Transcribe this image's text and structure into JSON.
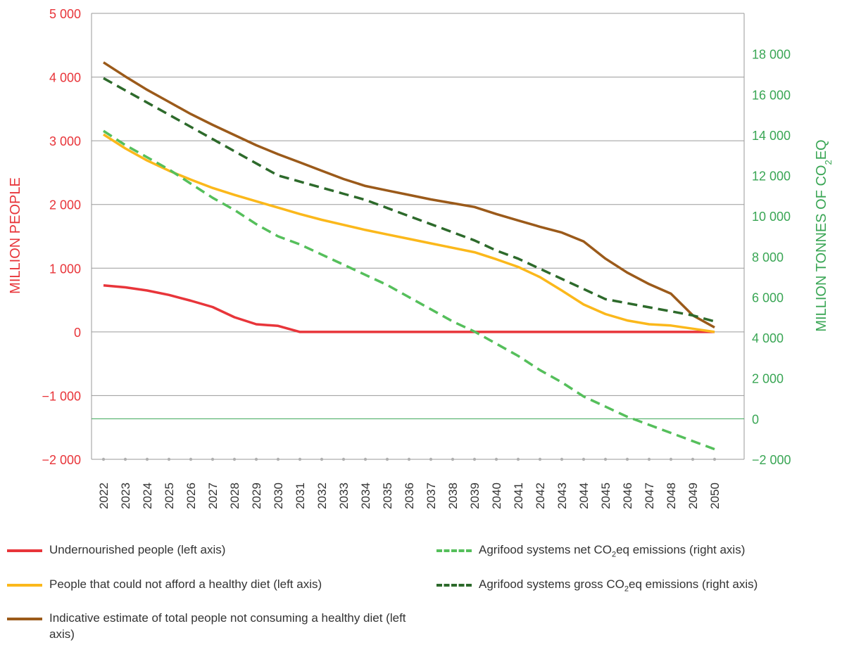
{
  "chart_data": {
    "type": "line",
    "categories": [
      "2022",
      "2023",
      "2024",
      "2025",
      "2026",
      "2027",
      "2028",
      "2029",
      "2030",
      "2031",
      "2032",
      "2033",
      "2034",
      "2035",
      "2036",
      "2037",
      "2038",
      "2039",
      "2040",
      "2041",
      "2042",
      "2043",
      "2044",
      "2045",
      "2046",
      "2047",
      "2048",
      "2049",
      "2050"
    ],
    "left_axis": {
      "label": "MILLION PEOPLE",
      "range": [
        -2000,
        5000
      ],
      "ticks": [
        "5 000",
        "4 000",
        "3 000",
        "2 000",
        "1 000",
        "0",
        "−1 000",
        "−2 000"
      ],
      "tick_values": [
        5000,
        4000,
        3000,
        2000,
        1000,
        0,
        -1000,
        -2000
      ],
      "color": "#e8353a"
    },
    "right_axis": {
      "label_prefix": "MILLION TONNES OF CO",
      "label_sub": "2",
      "label_suffix": "EQ",
      "range": [
        -2000,
        20000
      ],
      "ticks": [
        "18 000",
        "16 000",
        "14 000",
        "12 000",
        "10 000",
        "8 000",
        "6 000",
        "4 000",
        "2 000",
        "0",
        "−2 000"
      ],
      "tick_values": [
        18000,
        16000,
        14000,
        12000,
        10000,
        8000,
        6000,
        4000,
        2000,
        0,
        -2000
      ],
      "color": "#3aa655"
    },
    "grid": true,
    "series": [
      {
        "name": "Undernourished people (left axis)",
        "axis": "left",
        "color": "#e8353a",
        "dash": false,
        "values": [
          730,
          700,
          650,
          580,
          490,
          390,
          230,
          120,
          95,
          0,
          0,
          0,
          0,
          0,
          0,
          0,
          0,
          0,
          0,
          0,
          0,
          0,
          0,
          0,
          0,
          0,
          0,
          0,
          0
        ]
      },
      {
        "name": "People that could not afford a healthy diet (left axis)",
        "axis": "left",
        "color": "#fbb81b",
        "dash": false,
        "values": [
          3100,
          2880,
          2690,
          2530,
          2390,
          2260,
          2150,
          2050,
          1950,
          1850,
          1760,
          1680,
          1600,
          1530,
          1460,
          1390,
          1320,
          1250,
          1140,
          1020,
          860,
          650,
          430,
          280,
          180,
          120,
          100,
          50,
          0
        ]
      },
      {
        "name": "Indicative estimate of total people not consuming a healthy diet (left axis)",
        "axis": "left",
        "color": "#9b5a1a",
        "dash": false,
        "values": [
          4230,
          4010,
          3800,
          3610,
          3420,
          3250,
          3090,
          2930,
          2790,
          2660,
          2530,
          2400,
          2290,
          2220,
          2150,
          2080,
          2020,
          1960,
          1850,
          1750,
          1650,
          1560,
          1420,
          1150,
          930,
          750,
          600,
          260,
          70
        ]
      },
      {
        "name_prefix": "Agrifood systems net CO",
        "name_sub": "2",
        "name_suffix": "eq emissions (right axis)",
        "axis": "right",
        "color": "#55bf5b",
        "dash": true,
        "values": [
          14200,
          13500,
          12900,
          12300,
          11600,
          10900,
          10300,
          9600,
          9000,
          8600,
          8100,
          7600,
          7100,
          6600,
          6000,
          5400,
          4800,
          4300,
          3700,
          3100,
          2400,
          1800,
          1100,
          600,
          100,
          -300,
          -700,
          -1100,
          -1500
        ]
      },
      {
        "name_prefix": "Agrifood systems gross CO",
        "name_sub": "2",
        "name_suffix": "eq emissions (right axis)",
        "axis": "right",
        "color": "#2d6a2b",
        "dash": true,
        "values": [
          16800,
          16200,
          15600,
          15000,
          14400,
          13800,
          13200,
          12600,
          12000,
          11700,
          11400,
          11100,
          10800,
          10400,
          10000,
          9600,
          9200,
          8800,
          8300,
          7900,
          7400,
          6900,
          6400,
          5900,
          5700,
          5500,
          5300,
          5100,
          4800
        ]
      }
    ]
  }
}
